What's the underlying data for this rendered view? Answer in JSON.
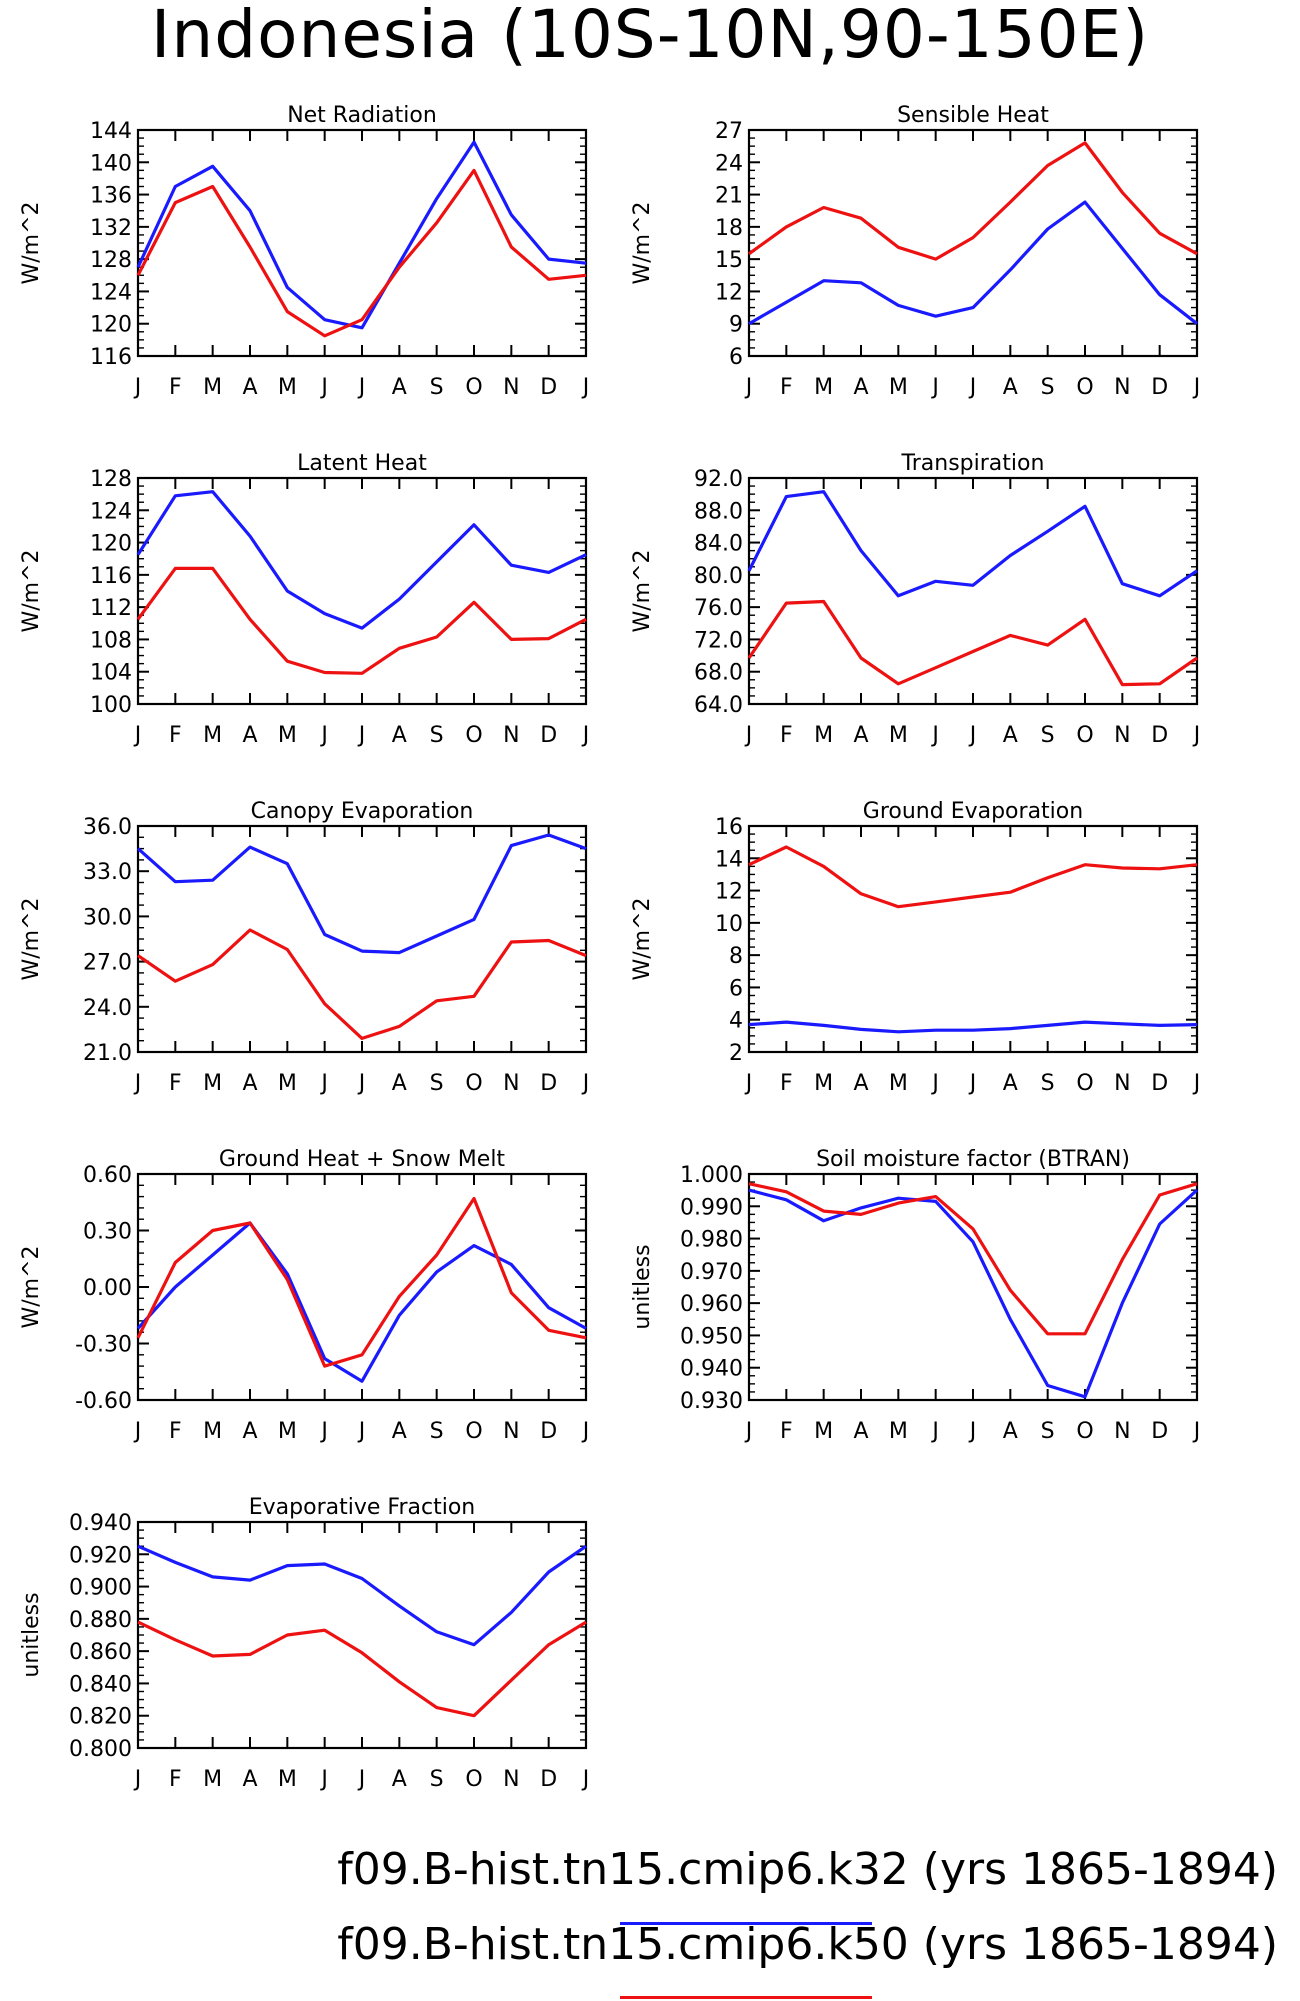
{
  "title": "Indonesia (10S-10N,90-150E)",
  "months": [
    "J",
    "F",
    "M",
    "A",
    "M",
    "J",
    "J",
    "A",
    "S",
    "O",
    "N",
    "D",
    "J"
  ],
  "colors": {
    "k32": "#1a1aff",
    "k50": "#ee1111"
  },
  "legend": [
    {
      "text": "f09.B-hist.tn15.cmip6.k32 (yrs 1865-1894)",
      "color": "#1a1aff"
    },
    {
      "text": "f09.B-hist.tn15.cmip6.k50 (yrs 1865-1894)",
      "color": "#ee1111"
    }
  ],
  "chart_data": [
    {
      "type": "line",
      "title": "Net Radiation",
      "ylabel": "W/m^2",
      "ylim": [
        116,
        144
      ],
      "yticks": [
        "116",
        "120",
        "124",
        "128",
        "132",
        "136",
        "140",
        "144"
      ],
      "series": [
        {
          "name": "f09.B-hist.tn15.cmip6.k32",
          "values": [
            127,
            137,
            139.5,
            134,
            124.5,
            120.5,
            119.5,
            127.5,
            135.5,
            142.5,
            133.5,
            128,
            127.5
          ]
        },
        {
          "name": "f09.B-hist.tn15.cmip6.k50",
          "values": [
            126,
            135,
            137,
            129.5,
            121.5,
            118.5,
            120.5,
            127,
            132.5,
            139,
            129.5,
            125.5,
            126
          ]
        }
      ]
    },
    {
      "type": "line",
      "title": "Sensible Heat",
      "ylabel": "W/m^2",
      "ylim": [
        6,
        27
      ],
      "yticks": [
        "6",
        "9",
        "12",
        "15",
        "18",
        "21",
        "24",
        "27"
      ],
      "series": [
        {
          "name": "f09.B-hist.tn15.cmip6.k32",
          "values": [
            9,
            11,
            13,
            12.8,
            10.7,
            9.7,
            10.5,
            14,
            17.8,
            20.3,
            16,
            11.7,
            9
          ]
        },
        {
          "name": "f09.B-hist.tn15.cmip6.k50",
          "values": [
            15.5,
            18,
            19.8,
            18.8,
            16.1,
            15,
            17,
            20.3,
            23.7,
            25.8,
            21.2,
            17.4,
            15.5
          ]
        }
      ]
    },
    {
      "type": "line",
      "title": "Latent Heat",
      "ylabel": "W/m^2",
      "ylim": [
        100,
        128
      ],
      "yticks": [
        "100",
        "104",
        "108",
        "112",
        "116",
        "120",
        "124",
        "128"
      ],
      "series": [
        {
          "name": "f09.B-hist.tn15.cmip6.k32",
          "values": [
            118.5,
            125.8,
            126.3,
            120.8,
            114,
            111.2,
            109.4,
            113,
            117.6,
            122.2,
            117.2,
            116.3,
            118.5
          ]
        },
        {
          "name": "f09.B-hist.tn15.cmip6.k50",
          "values": [
            110.5,
            116.8,
            116.8,
            110.5,
            105.3,
            103.9,
            103.8,
            106.9,
            108.3,
            112.6,
            108,
            108.1,
            110.5
          ]
        }
      ]
    },
    {
      "type": "line",
      "title": "Transpiration",
      "ylabel": "W/m^2",
      "ylim": [
        64,
        92
      ],
      "yticks": [
        "64.0",
        "68.0",
        "72.0",
        "76.0",
        "80.0",
        "84.0",
        "88.0",
        "92.0"
      ],
      "series": [
        {
          "name": "f09.B-hist.tn15.cmip6.k32",
          "values": [
            80.5,
            89.7,
            90.3,
            83,
            77.4,
            79.2,
            78.7,
            82.4,
            85.4,
            88.5,
            78.9,
            77.4,
            80.5
          ]
        },
        {
          "name": "f09.B-hist.tn15.cmip6.k50",
          "values": [
            69.7,
            76.5,
            76.7,
            69.7,
            66.5,
            68.5,
            70.5,
            72.5,
            71.3,
            74.5,
            66.4,
            66.5,
            69.7
          ]
        }
      ]
    },
    {
      "type": "line",
      "title": "Canopy Evaporation",
      "ylabel": "W/m^2",
      "ylim": [
        21,
        36
      ],
      "yticks": [
        "21.0",
        "24.0",
        "27.0",
        "30.0",
        "33.0",
        "36.0"
      ],
      "series": [
        {
          "name": "f09.B-hist.tn15.cmip6.k32",
          "values": [
            34.5,
            32.3,
            32.4,
            34.6,
            33.5,
            28.8,
            27.7,
            27.6,
            28.7,
            29.8,
            34.7,
            35.4,
            34.5
          ]
        },
        {
          "name": "f09.B-hist.tn15.cmip6.k50",
          "values": [
            27.4,
            25.7,
            26.8,
            29.1,
            27.8,
            24.2,
            21.9,
            22.7,
            24.4,
            24.7,
            28.3,
            28.4,
            27.4
          ]
        }
      ]
    },
    {
      "type": "line",
      "title": "Ground Evaporation",
      "ylabel": "W/m^2",
      "ylim": [
        2,
        16
      ],
      "yticks": [
        "2",
        "4",
        "6",
        "8",
        "10",
        "12",
        "14",
        "16"
      ],
      "series": [
        {
          "name": "f09.B-hist.tn15.cmip6.k32",
          "values": [
            3.7,
            3.85,
            3.65,
            3.4,
            3.25,
            3.35,
            3.35,
            3.45,
            3.65,
            3.85,
            3.75,
            3.65,
            3.7
          ]
        },
        {
          "name": "f09.B-hist.tn15.cmip6.k50",
          "values": [
            13.6,
            14.7,
            13.5,
            11.8,
            11,
            11.3,
            11.6,
            11.9,
            12.8,
            13.6,
            13.4,
            13.35,
            13.6
          ]
        }
      ]
    },
    {
      "type": "line",
      "title": "Ground Heat + Snow Melt",
      "ylabel": "W/m^2",
      "ylim": [
        -0.6,
        0.6
      ],
      "yticks": [
        "-0.60",
        "-0.30",
        "0.00",
        "0.30",
        "0.60"
      ],
      "series": [
        {
          "name": "f09.B-hist.tn15.cmip6.k32",
          "values": [
            -0.22,
            0,
            0.17,
            0.34,
            0.07,
            -0.38,
            -0.5,
            -0.15,
            0.08,
            0.22,
            0.12,
            -0.11,
            -0.22
          ]
        },
        {
          "name": "f09.B-hist.tn15.cmip6.k50",
          "values": [
            -0.27,
            0.13,
            0.3,
            0.34,
            0.04,
            -0.42,
            -0.36,
            -0.05,
            0.17,
            0.47,
            -0.03,
            -0.23,
            -0.27
          ]
        }
      ]
    },
    {
      "type": "line",
      "title": "Soil moisture factor (BTRAN)",
      "ylabel": "unitless",
      "ylim": [
        0.93,
        1.0
      ],
      "yticks": [
        "0.930",
        "0.940",
        "0.950",
        "0.960",
        "0.970",
        "0.980",
        "0.990",
        "1.000"
      ],
      "series": [
        {
          "name": "f09.B-hist.tn15.cmip6.k32",
          "values": [
            0.995,
            0.992,
            0.9855,
            0.9895,
            0.9925,
            0.9915,
            0.979,
            0.955,
            0.9345,
            0.931,
            0.96,
            0.9845,
            0.995
          ]
        },
        {
          "name": "f09.B-hist.tn15.cmip6.k50",
          "values": [
            0.997,
            0.9945,
            0.9885,
            0.9875,
            0.991,
            0.993,
            0.983,
            0.964,
            0.9505,
            0.9505,
            0.9735,
            0.9935,
            0.997
          ]
        }
      ]
    },
    {
      "type": "line",
      "title": "Evaporative Fraction",
      "ylabel": "unitless",
      "ylim": [
        0.8,
        0.94
      ],
      "yticks": [
        "0.800",
        "0.820",
        "0.840",
        "0.860",
        "0.880",
        "0.900",
        "0.920",
        "0.940"
      ],
      "series": [
        {
          "name": "f09.B-hist.tn15.cmip6.k32",
          "values": [
            0.925,
            0.915,
            0.906,
            0.904,
            0.913,
            0.914,
            0.905,
            0.888,
            0.872,
            0.864,
            0.884,
            0.909,
            0.925
          ]
        },
        {
          "name": "f09.B-hist.tn15.cmip6.k50",
          "values": [
            0.878,
            0.867,
            0.857,
            0.858,
            0.87,
            0.873,
            0.859,
            0.841,
            0.825,
            0.82,
            0.842,
            0.864,
            0.878
          ]
        }
      ]
    }
  ]
}
